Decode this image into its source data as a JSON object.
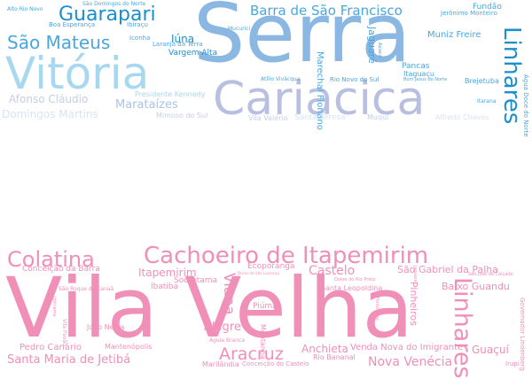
{
  "palette": {
    "blue_dark": "#1a8fd0",
    "blue_mid": "#4aa6df",
    "blue_light": "#a8d8f0",
    "lavender": "#b9bfe0",
    "grey_blue": "#c5cee5",
    "pink": "#f08fb7",
    "pink_light": "#f5b7cf",
    "pink_dark": "#e86fa2"
  },
  "top_cloud": [
    {
      "text": "Serra",
      "color": "#8ab8e2"
    },
    {
      "text": "Cariacica",
      "color": "#b9bfe0"
    },
    {
      "text": "Vitória",
      "color": "#a8d8f0"
    },
    {
      "text": "Guarapari",
      "color": "#1a8fd0"
    },
    {
      "text": "Linhares",
      "color": "#1a8fd0"
    },
    {
      "text": "São Mateus",
      "color": "#4aa6df"
    },
    {
      "text": "Barra de São Francisco",
      "color": "#4aa6df"
    },
    {
      "text": "Afonso Cláudio",
      "color": "#c5cee5"
    },
    {
      "text": "Marataízes",
      "color": "#a8c4e6"
    },
    {
      "text": "Domingos Martins",
      "color": "#d8e4f3"
    },
    {
      "text": "Iúna",
      "color": "#1a8fd0"
    },
    {
      "text": "Vargem Alta",
      "color": "#1a8fd0"
    },
    {
      "text": "Muniz Freire",
      "color": "#4aa6df"
    },
    {
      "text": "Jaguaré",
      "color": "#4aa6df"
    },
    {
      "text": "Marechal Floriano",
      "color": "#4aa6df"
    },
    {
      "text": "Pancas",
      "color": "#4aa6df"
    },
    {
      "text": "Itaguaçu",
      "color": "#4aa6df"
    },
    {
      "text": "Brejetuba",
      "color": "#4aa6df"
    },
    {
      "text": "Fundão",
      "color": "#4aa6df"
    },
    {
      "text": "Jerônimo Monteiro",
      "color": "#4aa6df"
    },
    {
      "text": "Alto Rio Novo",
      "color": "#4aa6df"
    },
    {
      "text": "São Domingos do Norte",
      "color": "#4aa6df"
    },
    {
      "text": "Boa Esperança",
      "color": "#4aa6df"
    },
    {
      "text": "Ibiraçu",
      "color": "#4aa6df"
    },
    {
      "text": "Iconha",
      "color": "#4aa6df"
    },
    {
      "text": "Laranja da Terra",
      "color": "#4aa6df"
    },
    {
      "text": "Mucurici",
      "color": "#4aa6df"
    },
    {
      "text": "Presidente Kennedy",
      "color": "#a8d8f0"
    },
    {
      "text": "Mimoso do Sul",
      "color": "#c5cee5"
    },
    {
      "text": "Vila Valério",
      "color": "#c5cee5"
    },
    {
      "text": "Santa Teresa",
      "color": "#d8e4f3"
    },
    {
      "text": "Muqui",
      "color": "#c5cee5"
    },
    {
      "text": "Alfredo Chaves",
      "color": "#d8e4f3"
    },
    {
      "text": "Atílio Vivácqua",
      "color": "#4aa6df"
    },
    {
      "text": "Rio Novo do Sul",
      "color": "#4aa6df"
    },
    {
      "text": "Bom Jesus do Norte",
      "color": "#4aa6df"
    },
    {
      "text": "Itarana",
      "color": "#4aa6df"
    },
    {
      "text": "Apiacá",
      "color": "#4aa6df"
    },
    {
      "text": "Água Doce do Norte",
      "color": "#4aa6df"
    }
  ],
  "bottom_cloud": [
    {
      "text": "Vila Velha",
      "color": "#f08fb7"
    },
    {
      "text": "Cachoeiro de Itapemirim",
      "color": "#f08fb7"
    },
    {
      "text": "Colatina",
      "color": "#f08fb7"
    },
    {
      "text": "Aracruz",
      "color": "#f08fb7"
    },
    {
      "text": "Viana",
      "color": "#f08fb7"
    },
    {
      "text": "Castelo",
      "color": "#f08fb7"
    },
    {
      "text": "Linhares",
      "color": "#f08fb7"
    },
    {
      "text": "São Gabriel da Palha",
      "color": "#f08fb7"
    },
    {
      "text": "Santa Maria de Jetibá",
      "color": "#f08fb7"
    },
    {
      "text": "Nova Venécia",
      "color": "#f08fb7"
    },
    {
      "text": "Baixo Guandu",
      "color": "#f08fb7"
    },
    {
      "text": "Itapemirim",
      "color": "#f08fb7"
    },
    {
      "text": "Conceição da Barra",
      "color": "#f08fb7"
    },
    {
      "text": "Ecoporanga",
      "color": "#f08fb7"
    },
    {
      "text": "Sooretama",
      "color": "#f08fb7"
    },
    {
      "text": "Ibatiba",
      "color": "#f08fb7"
    },
    {
      "text": "Pinheiros",
      "color": "#f08fb7"
    },
    {
      "text": "Santa Leopoldina",
      "color": "#f08fb7"
    },
    {
      "text": "Anchieta",
      "color": "#f08fb7"
    },
    {
      "text": "Alegre",
      "color": "#f08fb7"
    },
    {
      "text": "Venda Nova do Imigrante",
      "color": "#f08fb7"
    },
    {
      "text": "Guaçuí",
      "color": "#f08fb7"
    },
    {
      "text": "Pedro Canário",
      "color": "#f08fb7"
    },
    {
      "text": "Montanha",
      "color": "#f08fb7"
    },
    {
      "text": "Piúma",
      "color": "#f08fb7"
    },
    {
      "text": "João Neiva",
      "color": "#f08fb7"
    },
    {
      "text": "Mantenópolis",
      "color": "#f08fb7"
    },
    {
      "text": "Rio Bananal",
      "color": "#f08fb7"
    },
    {
      "text": "Marilândia",
      "color": "#f08fb7"
    },
    {
      "text": "Conceição do Castelo",
      "color": "#f08fb7"
    },
    {
      "text": "Águia Branca",
      "color": "#f08fb7"
    },
    {
      "text": "São Roque do Canaã",
      "color": "#f08fb7"
    },
    {
      "text": "Governador Lindenberg",
      "color": "#f08fb7"
    },
    {
      "text": "Irupi",
      "color": "#f08fb7"
    },
    {
      "text": "Ponto Belo",
      "color": "#f08fb7"
    },
    {
      "text": "São José do Calçado",
      "color": "#f08fb7"
    },
    {
      "text": "Divino de São Lourenço",
      "color": "#f08fb7"
    },
    {
      "text": "Dores do Rio Preto",
      "color": "#f08fb7"
    },
    {
      "text": "Jaguaré",
      "color": "#f08fb7"
    },
    {
      "text": "Vila Pavão",
      "color": "#f08fb7"
    },
    {
      "text": "Ibitirama",
      "color": "#f08fb7"
    }
  ]
}
